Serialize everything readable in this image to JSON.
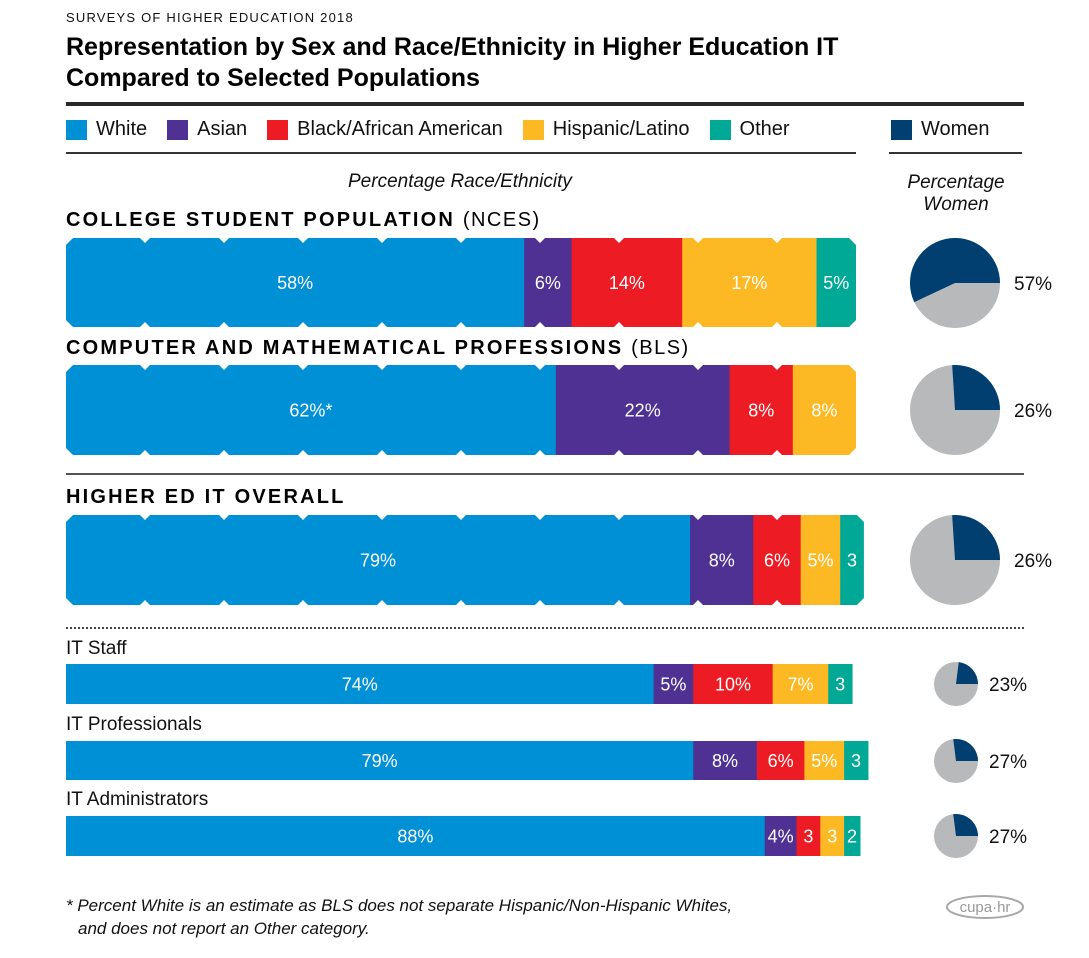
{
  "header": {
    "kicker": "SURVEYS OF HIGHER EDUCATION 2018",
    "title_line1": "Representation by Sex and Race/Ethnicity in Higher Education IT",
    "title_line2": "Compared to Selected Populations"
  },
  "legend": {
    "items": [
      {
        "label": "White",
        "color": "#0090d6"
      },
      {
        "label": "Asian",
        "color": "#4e3192"
      },
      {
        "label": "Black/African American",
        "color": "#ed1c24"
      },
      {
        "label": "Hispanic/Latino",
        "color": "#fdb924"
      },
      {
        "label": "Other",
        "color": "#00a896"
      }
    ],
    "women": {
      "label": "Women",
      "color": "#003f6f"
    }
  },
  "axis_labels": {
    "race": "Percentage Race/Ethnicity",
    "women_line1": "Percentage",
    "women_line2": "Women"
  },
  "chart_data": {
    "type": "bar",
    "subtype": "stacked-horizontal-100pct-with-pies",
    "title": "Representation by Sex and Race/Ethnicity in Higher Education IT Compared to Selected Populations",
    "xlabel": "Percentage Race/Ethnicity",
    "pie_label": "Percentage Women",
    "series_names": [
      "White",
      "Asian",
      "Black/African American",
      "Hispanic/Latino",
      "Other"
    ],
    "pie_colors": {
      "women": "#003f6f",
      "rest": "#b8b9bb"
    },
    "groups": [
      {
        "name": "COLLEGE STUDENT POPULATION",
        "source": "(NCES)",
        "style": "major",
        "values": [
          58,
          6,
          14,
          17,
          5
        ],
        "labels": [
          "58%",
          "6%",
          "14%",
          "17%",
          "5%"
        ],
        "women": 57,
        "women_label": "57%"
      },
      {
        "name": "COMPUTER AND MATHEMATICAL PROFESSIONS",
        "source": "(BLS)",
        "style": "major",
        "values": [
          62,
          22,
          8,
          8,
          0
        ],
        "labels": [
          "62%*",
          "22%",
          "8%",
          "8%",
          ""
        ],
        "women": 26,
        "women_label": "26%"
      },
      {
        "name": "HIGHER ED IT OVERALL",
        "source": "",
        "style": "major",
        "values": [
          79,
          8,
          6,
          5,
          3
        ],
        "labels": [
          "79%",
          "8%",
          "6%",
          "5%",
          "3"
        ],
        "women": 26,
        "women_label": "26%"
      },
      {
        "name": "IT Staff",
        "source": "",
        "style": "minor",
        "values": [
          74,
          5,
          10,
          7,
          3
        ],
        "labels": [
          "74%",
          "5%",
          "10%",
          "7%",
          "3"
        ],
        "women": 23,
        "women_label": "23%"
      },
      {
        "name": "IT Professionals",
        "source": "",
        "style": "minor",
        "values": [
          79,
          8,
          6,
          5,
          3
        ],
        "labels": [
          "79%",
          "8%",
          "6%",
          "5%",
          "3"
        ],
        "women": 27,
        "women_label": "27%"
      },
      {
        "name": "IT Administrators",
        "source": "",
        "style": "minor",
        "values": [
          88,
          4,
          3,
          3,
          2
        ],
        "labels": [
          "88%",
          "4%",
          "3",
          "3",
          "2"
        ],
        "women": 27,
        "women_label": "27%"
      }
    ]
  },
  "footnote": {
    "line1": "* Percent White is an estimate as BLS does not separate Hispanic/Non-Hispanic Whites,",
    "line2": "and does not report an Other category."
  },
  "logo": {
    "text": "cupa·hr"
  }
}
